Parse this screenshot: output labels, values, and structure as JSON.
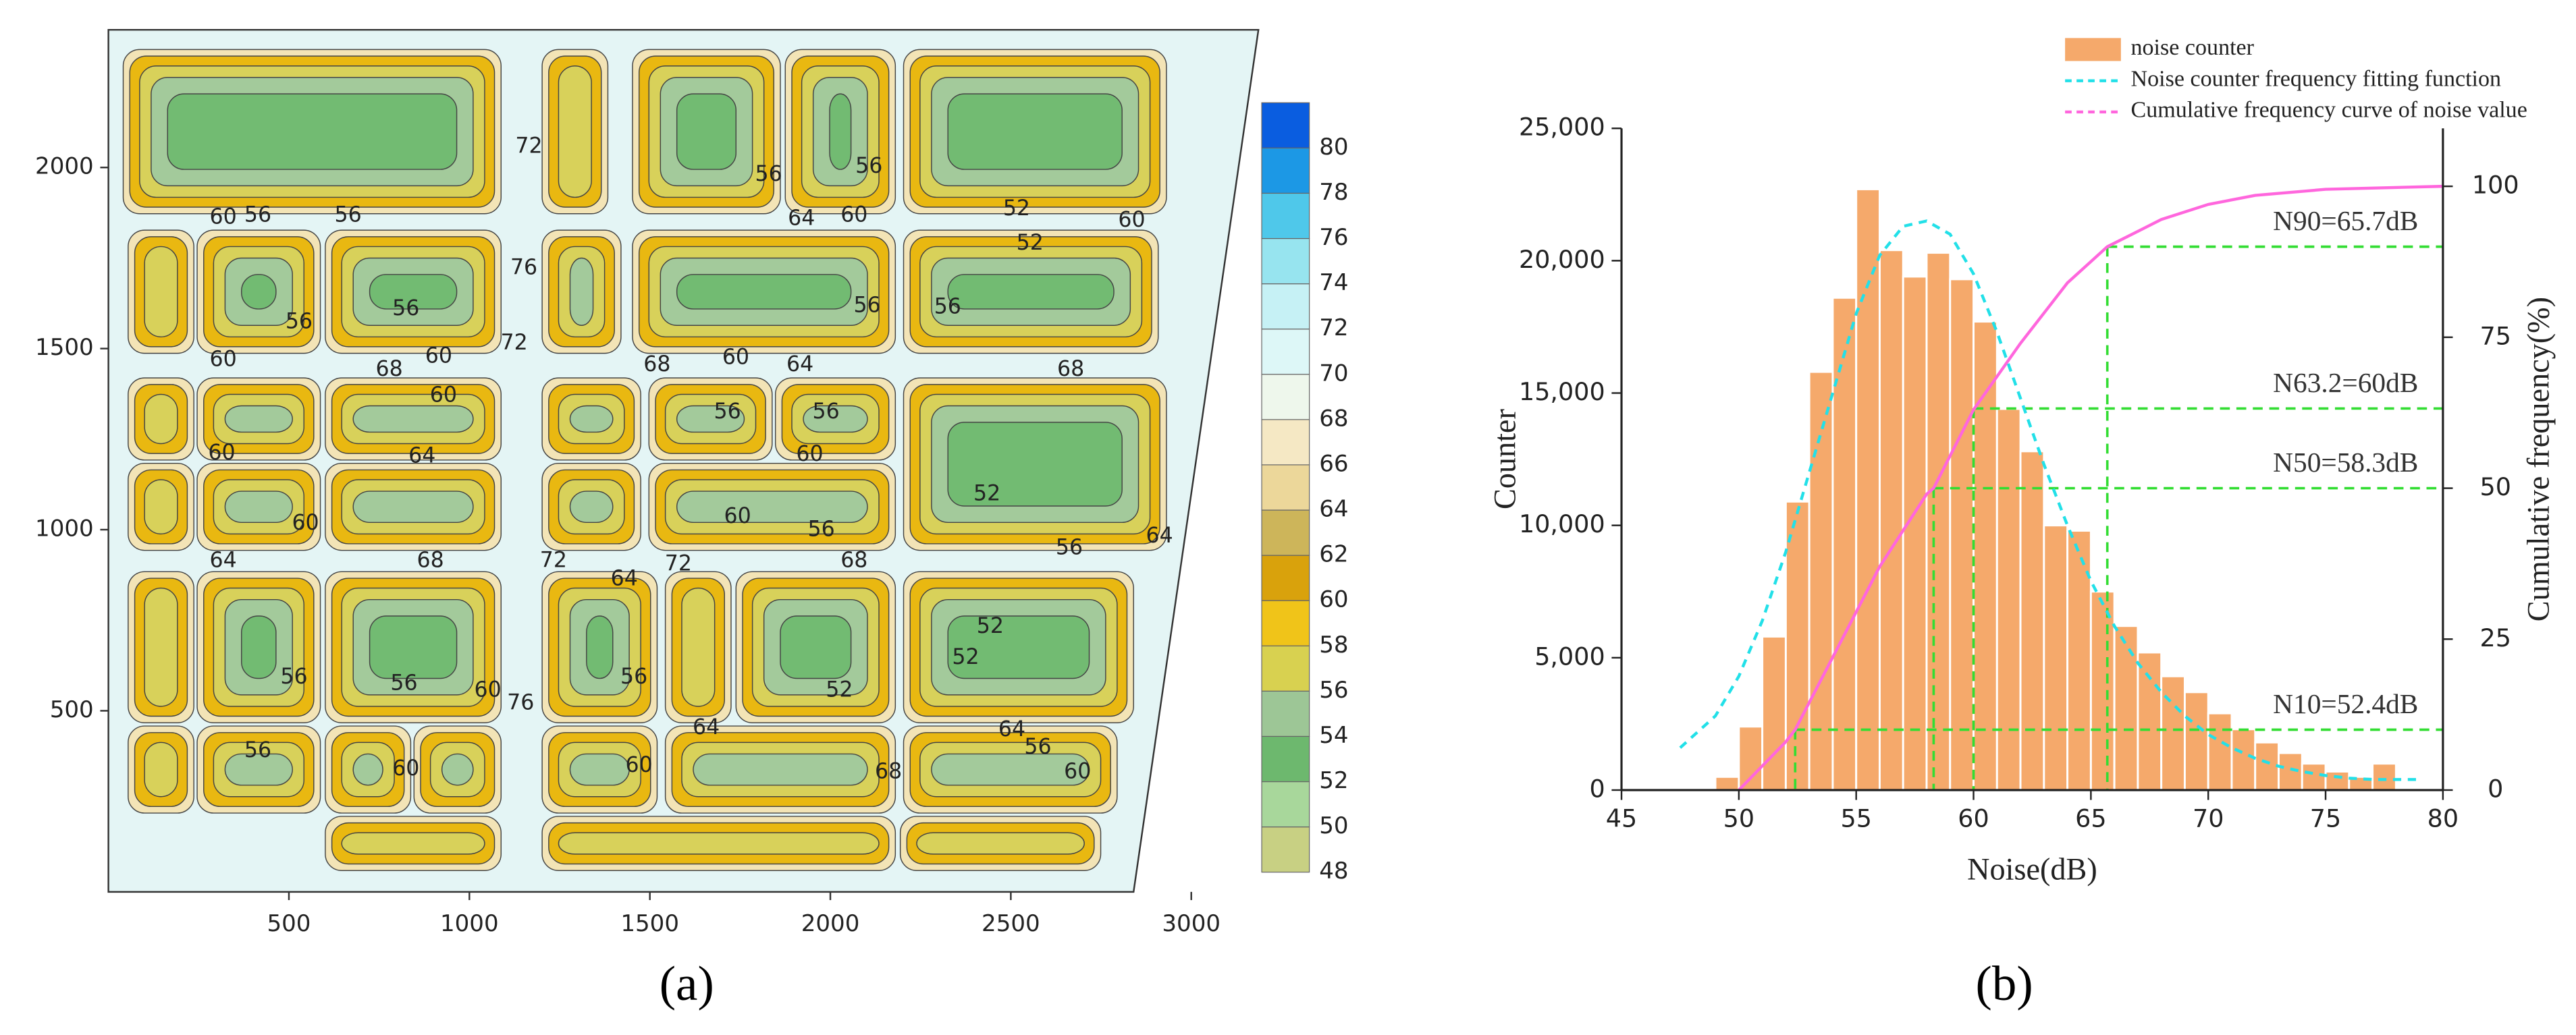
{
  "chart_data": [
    {
      "type": "contour",
      "xlim": [
        0,
        3186
      ],
      "ylim": [
        0,
        2380
      ],
      "xticks": [
        500,
        1000,
        1500,
        2000,
        2500,
        3000
      ],
      "yticks": [
        500,
        1000,
        1500,
        2000
      ],
      "colorbar": {
        "lim": [
          48,
          82
        ],
        "levels": [
          48,
          50,
          52,
          54,
          56,
          58,
          60,
          62,
          64,
          66,
          68,
          70,
          72,
          74,
          76,
          78,
          80
        ],
        "colors": [
          "#c8d083",
          "#a8d79b",
          "#6db86e",
          "#9dc696",
          "#d8d150",
          "#f0c419",
          "#d9a20c",
          "#cdb55a",
          "#ecd79a",
          "#f5e8c4",
          "#eef7ec",
          "#ddf7f7",
          "#c6f1f5",
          "#97e4ef",
          "#4fc8ea",
          "#1c98e5",
          "#0a5de0"
        ]
      },
      "contour_labels": [
        {
          "text": "60",
          "x": 318,
          "y": 1862
        },
        {
          "text": "56",
          "x": 414,
          "y": 1867
        },
        {
          "text": "56",
          "x": 664,
          "y": 1867
        },
        {
          "text": "72",
          "x": 1165,
          "y": 2057
        },
        {
          "text": "56",
          "x": 1829,
          "y": 1980
        },
        {
          "text": "56",
          "x": 2107,
          "y": 2002
        },
        {
          "text": "52",
          "x": 2516,
          "y": 1885
        },
        {
          "text": "60",
          "x": 2835,
          "y": 1853
        },
        {
          "text": "64",
          "x": 1920,
          "y": 1858
        },
        {
          "text": "60",
          "x": 2066,
          "y": 1867
        },
        {
          "text": "56",
          "x": 528,
          "y": 1573
        },
        {
          "text": "56",
          "x": 824,
          "y": 1609
        },
        {
          "text": "76",
          "x": 1151,
          "y": 1722
        },
        {
          "text": "56",
          "x": 2102,
          "y": 1618
        },
        {
          "text": "56",
          "x": 2325,
          "y": 1614
        },
        {
          "text": "52",
          "x": 2553,
          "y": 1790
        },
        {
          "text": "60",
          "x": 318,
          "y": 1469
        },
        {
          "text": "68",
          "x": 778,
          "y": 1442
        },
        {
          "text": "60",
          "x": 915,
          "y": 1478
        },
        {
          "text": "72",
          "x": 1124,
          "y": 1514
        },
        {
          "text": "68",
          "x": 1520,
          "y": 1455
        },
        {
          "text": "60",
          "x": 1738,
          "y": 1474
        },
        {
          "text": "64",
          "x": 1916,
          "y": 1455
        },
        {
          "text": "68",
          "x": 2666,
          "y": 1442
        },
        {
          "text": "56",
          "x": 1715,
          "y": 1324
        },
        {
          "text": "56",
          "x": 1988,
          "y": 1324
        },
        {
          "text": "60",
          "x": 928,
          "y": 1370
        },
        {
          "text": "60",
          "x": 314,
          "y": 1211
        },
        {
          "text": "64",
          "x": 869,
          "y": 1202
        },
        {
          "text": "60",
          "x": 1943,
          "y": 1207
        },
        {
          "text": "52",
          "x": 2434,
          "y": 1098
        },
        {
          "text": "60",
          "x": 546,
          "y": 1017
        },
        {
          "text": "60",
          "x": 1743,
          "y": 1035
        },
        {
          "text": "56",
          "x": 1975,
          "y": 999
        },
        {
          "text": "64",
          "x": 318,
          "y": 913
        },
        {
          "text": "68",
          "x": 892,
          "y": 913
        },
        {
          "text": "72",
          "x": 1233,
          "y": 913
        },
        {
          "text": "64",
          "x": 1429,
          "y": 863
        },
        {
          "text": "72",
          "x": 1579,
          "y": 904
        },
        {
          "text": "68",
          "x": 2066,
          "y": 913
        },
        {
          "text": "56",
          "x": 2662,
          "y": 949
        },
        {
          "text": "64",
          "x": 2912,
          "y": 981
        },
        {
          "text": "56",
          "x": 514,
          "y": 592
        },
        {
          "text": "56",
          "x": 819,
          "y": 574
        },
        {
          "text": "60",
          "x": 1051,
          "y": 556
        },
        {
          "text": "76",
          "x": 1142,
          "y": 520
        },
        {
          "text": "56",
          "x": 1456,
          "y": 592
        },
        {
          "text": "52",
          "x": 2025,
          "y": 556
        },
        {
          "text": "52",
          "x": 2443,
          "y": 732
        },
        {
          "text": "64",
          "x": 2503,
          "y": 447
        },
        {
          "text": "64",
          "x": 1656,
          "y": 452
        },
        {
          "text": "56",
          "x": 414,
          "y": 389
        },
        {
          "text": "60",
          "x": 824,
          "y": 339
        },
        {
          "text": "60",
          "x": 1470,
          "y": 348
        },
        {
          "text": "68",
          "x": 2161,
          "y": 330
        },
        {
          "text": "60",
          "x": 2685,
          "y": 330
        },
        {
          "text": "56",
          "x": 2575,
          "y": 398
        },
        {
          "text": "52",
          "x": 2375,
          "y": 646
        }
      ],
      "panel_label": "(a)"
    },
    {
      "type": "histogram",
      "name": "noise counter",
      "color": "#f5a96b",
      "bins": [
        49,
        50,
        51,
        52,
        53,
        54,
        55,
        56,
        57,
        58,
        59,
        60,
        61,
        62,
        63,
        64,
        65,
        66,
        67,
        68,
        69,
        70,
        71,
        72,
        73,
        74,
        75,
        76,
        77,
        78
      ],
      "counts": [
        500,
        2400,
        5800,
        10900,
        15800,
        18600,
        22700,
        20400,
        19400,
        20300,
        19300,
        17700,
        14400,
        12800,
        10000,
        9800,
        7500,
        6200,
        5200,
        4300,
        3700,
        2900,
        2300,
        1800,
        1400,
        1000,
        700,
        500,
        1000
      ],
      "series": [
        {
          "name": "Noise counter frequency fitting function",
          "color": "#22e0e8",
          "dashed": true,
          "x": [
            47.5,
            49,
            50,
            51,
            52,
            53,
            54,
            55,
            56,
            57,
            58,
            59,
            60,
            61,
            62,
            63,
            64,
            65,
            66,
            67,
            68,
            69,
            70,
            71,
            72,
            73,
            74,
            75,
            76,
            77,
            79
          ],
          "values": [
            1600,
            2800,
            4300,
            6400,
            9000,
            12000,
            15000,
            18000,
            20200,
            21300,
            21500,
            21000,
            19500,
            17300,
            14800,
            12300,
            10000,
            7900,
            6200,
            4800,
            3700,
            2800,
            2100,
            1600,
            1200,
            900,
            700,
            550,
            450,
            400,
            400
          ]
        },
        {
          "name": "Cumulative frequency curve of noise value",
          "color": "#ff66dd",
          "axis": "y2",
          "x": [
            50,
            52,
            52.4,
            54,
            56,
            58,
            58.3,
            60,
            62,
            64,
            65.7,
            68,
            70,
            72,
            75,
            80
          ],
          "values": [
            0,
            8,
            10,
            22,
            37,
            49,
            50,
            63,
            74,
            84,
            90,
            94.5,
            97,
            98.5,
            99.5,
            100
          ]
        }
      ],
      "annotations": [
        {
          "text": "N90=65.7dB",
          "x": 65.7,
          "y": 90
        },
        {
          "text": "N63.2=60dB",
          "x": 60,
          "y": 63.2
        },
        {
          "text": "N50=58.3dB",
          "x": 58.3,
          "y": 50
        },
        {
          "text": "N10=52.4dB",
          "x": 52.4,
          "y": 10
        }
      ],
      "annotation_color": "#33dd33",
      "xlim": [
        45,
        80
      ],
      "ylim": [
        0,
        25000
      ],
      "y2lim": [
        0,
        109.6
      ],
      "xticks": [
        45,
        50,
        55,
        60,
        65,
        70,
        75,
        80
      ],
      "yticks": [
        0,
        {
          "value": 5000,
          "label": "5,000"
        },
        {
          "value": 10000,
          "label": "10,000"
        },
        {
          "value": 15000,
          "label": "15,000"
        },
        {
          "value": 20000,
          "label": "20,000"
        },
        {
          "value": 25000,
          "label": "25,000"
        }
      ],
      "y2ticks": [
        0,
        25,
        50,
        75,
        100
      ],
      "xlabel": "Noise(dB)",
      "ylabel": "Counter",
      "y2label": "Cumulative frequency(%)",
      "legend": "top-right",
      "panel_label": "(b)"
    }
  ]
}
